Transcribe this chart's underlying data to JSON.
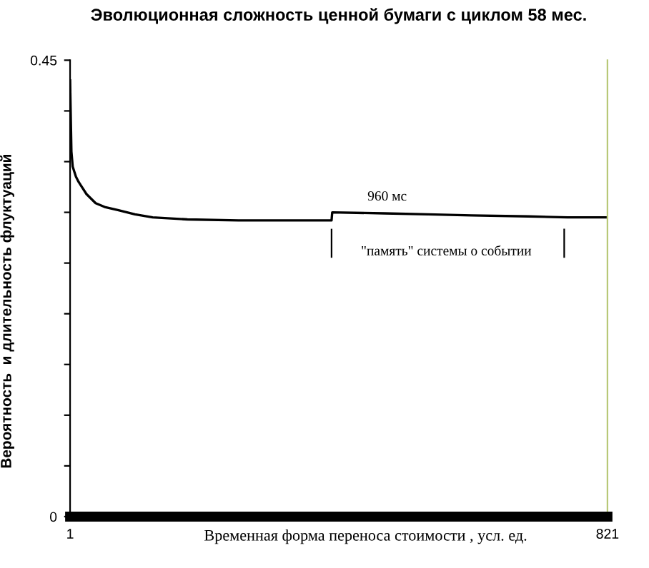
{
  "chart_data": {
    "type": "line",
    "title": "Эволюционная сложность ценной бумаги с циклом 58 мес.",
    "xlabel": "Временная форма переноса стоимости , усл. ед.",
    "ylabel": "Вероятность  и длительность флуктуаций",
    "x": [
      1,
      3,
      5,
      7.5,
      10,
      14,
      18,
      26,
      40,
      55,
      75,
      100,
      127,
      180,
      258,
      330,
      400,
      401,
      480,
      547,
      614,
      700,
      760,
      821
    ],
    "series": [
      {
        "color": "#000000",
        "values": [
          0.43,
          0.36,
          0.345,
          0.34,
          0.335,
          0.33,
          0.326,
          0.318,
          0.309,
          0.305,
          0.302,
          0.298,
          0.295,
          0.293,
          0.292,
          0.292,
          0.292,
          0.3,
          0.299,
          0.298,
          0.297,
          0.296,
          0.295,
          0.295
        ]
      }
    ],
    "xlim": [
      1,
      821
    ],
    "xticks": [
      1,
      821
    ],
    "ylim": [
      0,
      0.45
    ],
    "yticks": [
      0,
      {
        "value": 0.05,
        "label": null
      },
      {
        "value": 0.1,
        "label": null
      },
      {
        "value": 0.15,
        "label": null
      },
      {
        "value": 0.2,
        "label": null
      },
      {
        "value": 0.25,
        "label": null
      },
      {
        "value": 0.3,
        "label": null
      },
      {
        "value": 0.35,
        "label": null
      },
      {
        "value": 0.4,
        "label": null
      },
      0.45
    ],
    "annotations": [
      "960 мс",
      "\"память\" системы о событии"
    ],
    "grid": false,
    "legend": false,
    "marker": "none",
    "line_style": "solid"
  }
}
